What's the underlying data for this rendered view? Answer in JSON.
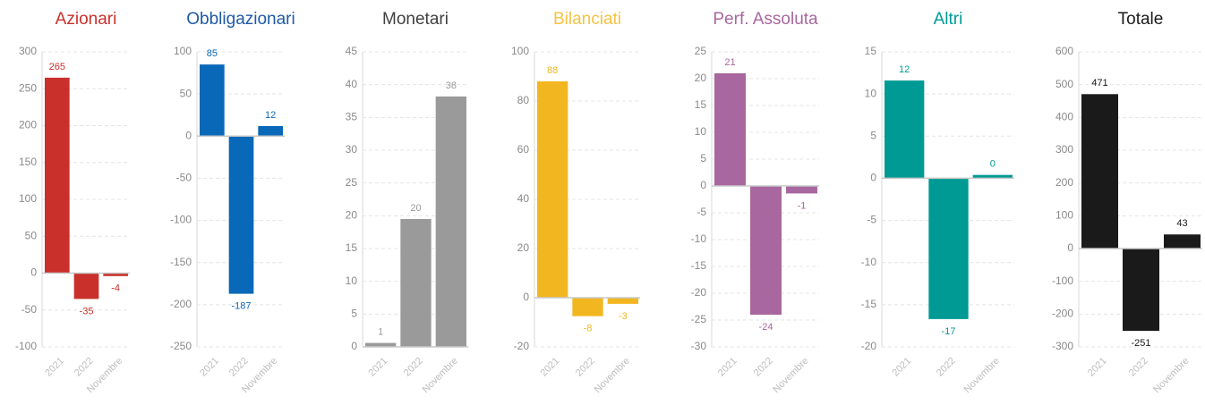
{
  "chart_data": [
    {
      "type": "bar",
      "title": "Azionari",
      "title_color": "#c9302c",
      "color": "#c9302c",
      "categories": [
        "2021",
        "2022",
        "Novembre"
      ],
      "values": [
        265,
        -35,
        -4
      ],
      "value_labels": [
        "265",
        "-35",
        "-4"
      ],
      "ylim": [
        -100,
        300
      ],
      "yticks": [
        -100,
        -50,
        0,
        50,
        100,
        150,
        200,
        250,
        300
      ],
      "grid": true
    },
    {
      "type": "bar",
      "title": "Obbligazionari",
      "title_color": "#1f5aa6",
      "color": "#0a68b8",
      "categories": [
        "2021",
        "2022",
        "Novembre"
      ],
      "values": [
        85,
        -187,
        12
      ],
      "value_labels": [
        "85",
        "-187",
        "12"
      ],
      "ylim": [
        -250,
        100
      ],
      "yticks": [
        -250,
        -200,
        -150,
        -100,
        -50,
        0,
        50,
        100
      ],
      "grid": true
    },
    {
      "type": "bar",
      "title": "Monetari",
      "title_color": "#404040",
      "color": "#9a9a9a",
      "categories": [
        "2021",
        "2022",
        "Novembre"
      ],
      "values": [
        0.6,
        19.5,
        38.2
      ],
      "value_labels": [
        "1",
        "20",
        "38"
      ],
      "ylim": [
        0,
        45
      ],
      "yticks": [
        0,
        5,
        10,
        15,
        20,
        25,
        30,
        35,
        40,
        45
      ],
      "grid": true
    },
    {
      "type": "bar",
      "title": "Bilanciati",
      "title_color": "#f5c242",
      "color": "#f2b620",
      "categories": [
        "2021",
        "2022",
        "Novembre"
      ],
      "values": [
        88,
        -7.5,
        -2.5
      ],
      "value_labels": [
        "88",
        "-8",
        "-3"
      ],
      "ylim": [
        -20,
        100
      ],
      "yticks": [
        -20,
        0,
        20,
        40,
        60,
        80,
        100
      ],
      "grid": true
    },
    {
      "type": "bar",
      "title": "Perf. Assoluta",
      "title_color": "#a8679e",
      "color": "#a8679e",
      "categories": [
        "2021",
        "2022",
        "Novembre"
      ],
      "values": [
        21,
        -24,
        -1.4
      ],
      "value_labels": [
        "21",
        "-24",
        "-1"
      ],
      "ylim": [
        -30,
        25
      ],
      "yticks": [
        -30,
        -25,
        -20,
        -15,
        -10,
        -5,
        0,
        5,
        10,
        15,
        20,
        25
      ],
      "grid": true
    },
    {
      "type": "bar",
      "title": "Altri",
      "title_color": "#009a94",
      "color": "#009a94",
      "categories": [
        "2021",
        "2022",
        "Novembre"
      ],
      "values": [
        11.6,
        -16.7,
        0.4
      ],
      "value_labels": [
        "12",
        "-17",
        "0"
      ],
      "ylim": [
        -20,
        15
      ],
      "yticks": [
        -20,
        -15,
        -10,
        -5,
        0,
        5,
        10,
        15
      ],
      "grid": true
    },
    {
      "type": "bar",
      "title": "Totale",
      "title_color": "#1a1a1a",
      "color": "#1a1a1a",
      "categories": [
        "2021",
        "2022",
        "Novembre"
      ],
      "values": [
        471,
        -251,
        43
      ],
      "value_labels": [
        "471",
        "-251",
        "43"
      ],
      "ylim": [
        -300,
        600
      ],
      "yticks": [
        -300,
        -200,
        -100,
        0,
        100,
        200,
        300,
        400,
        500,
        600
      ],
      "grid": true
    }
  ]
}
